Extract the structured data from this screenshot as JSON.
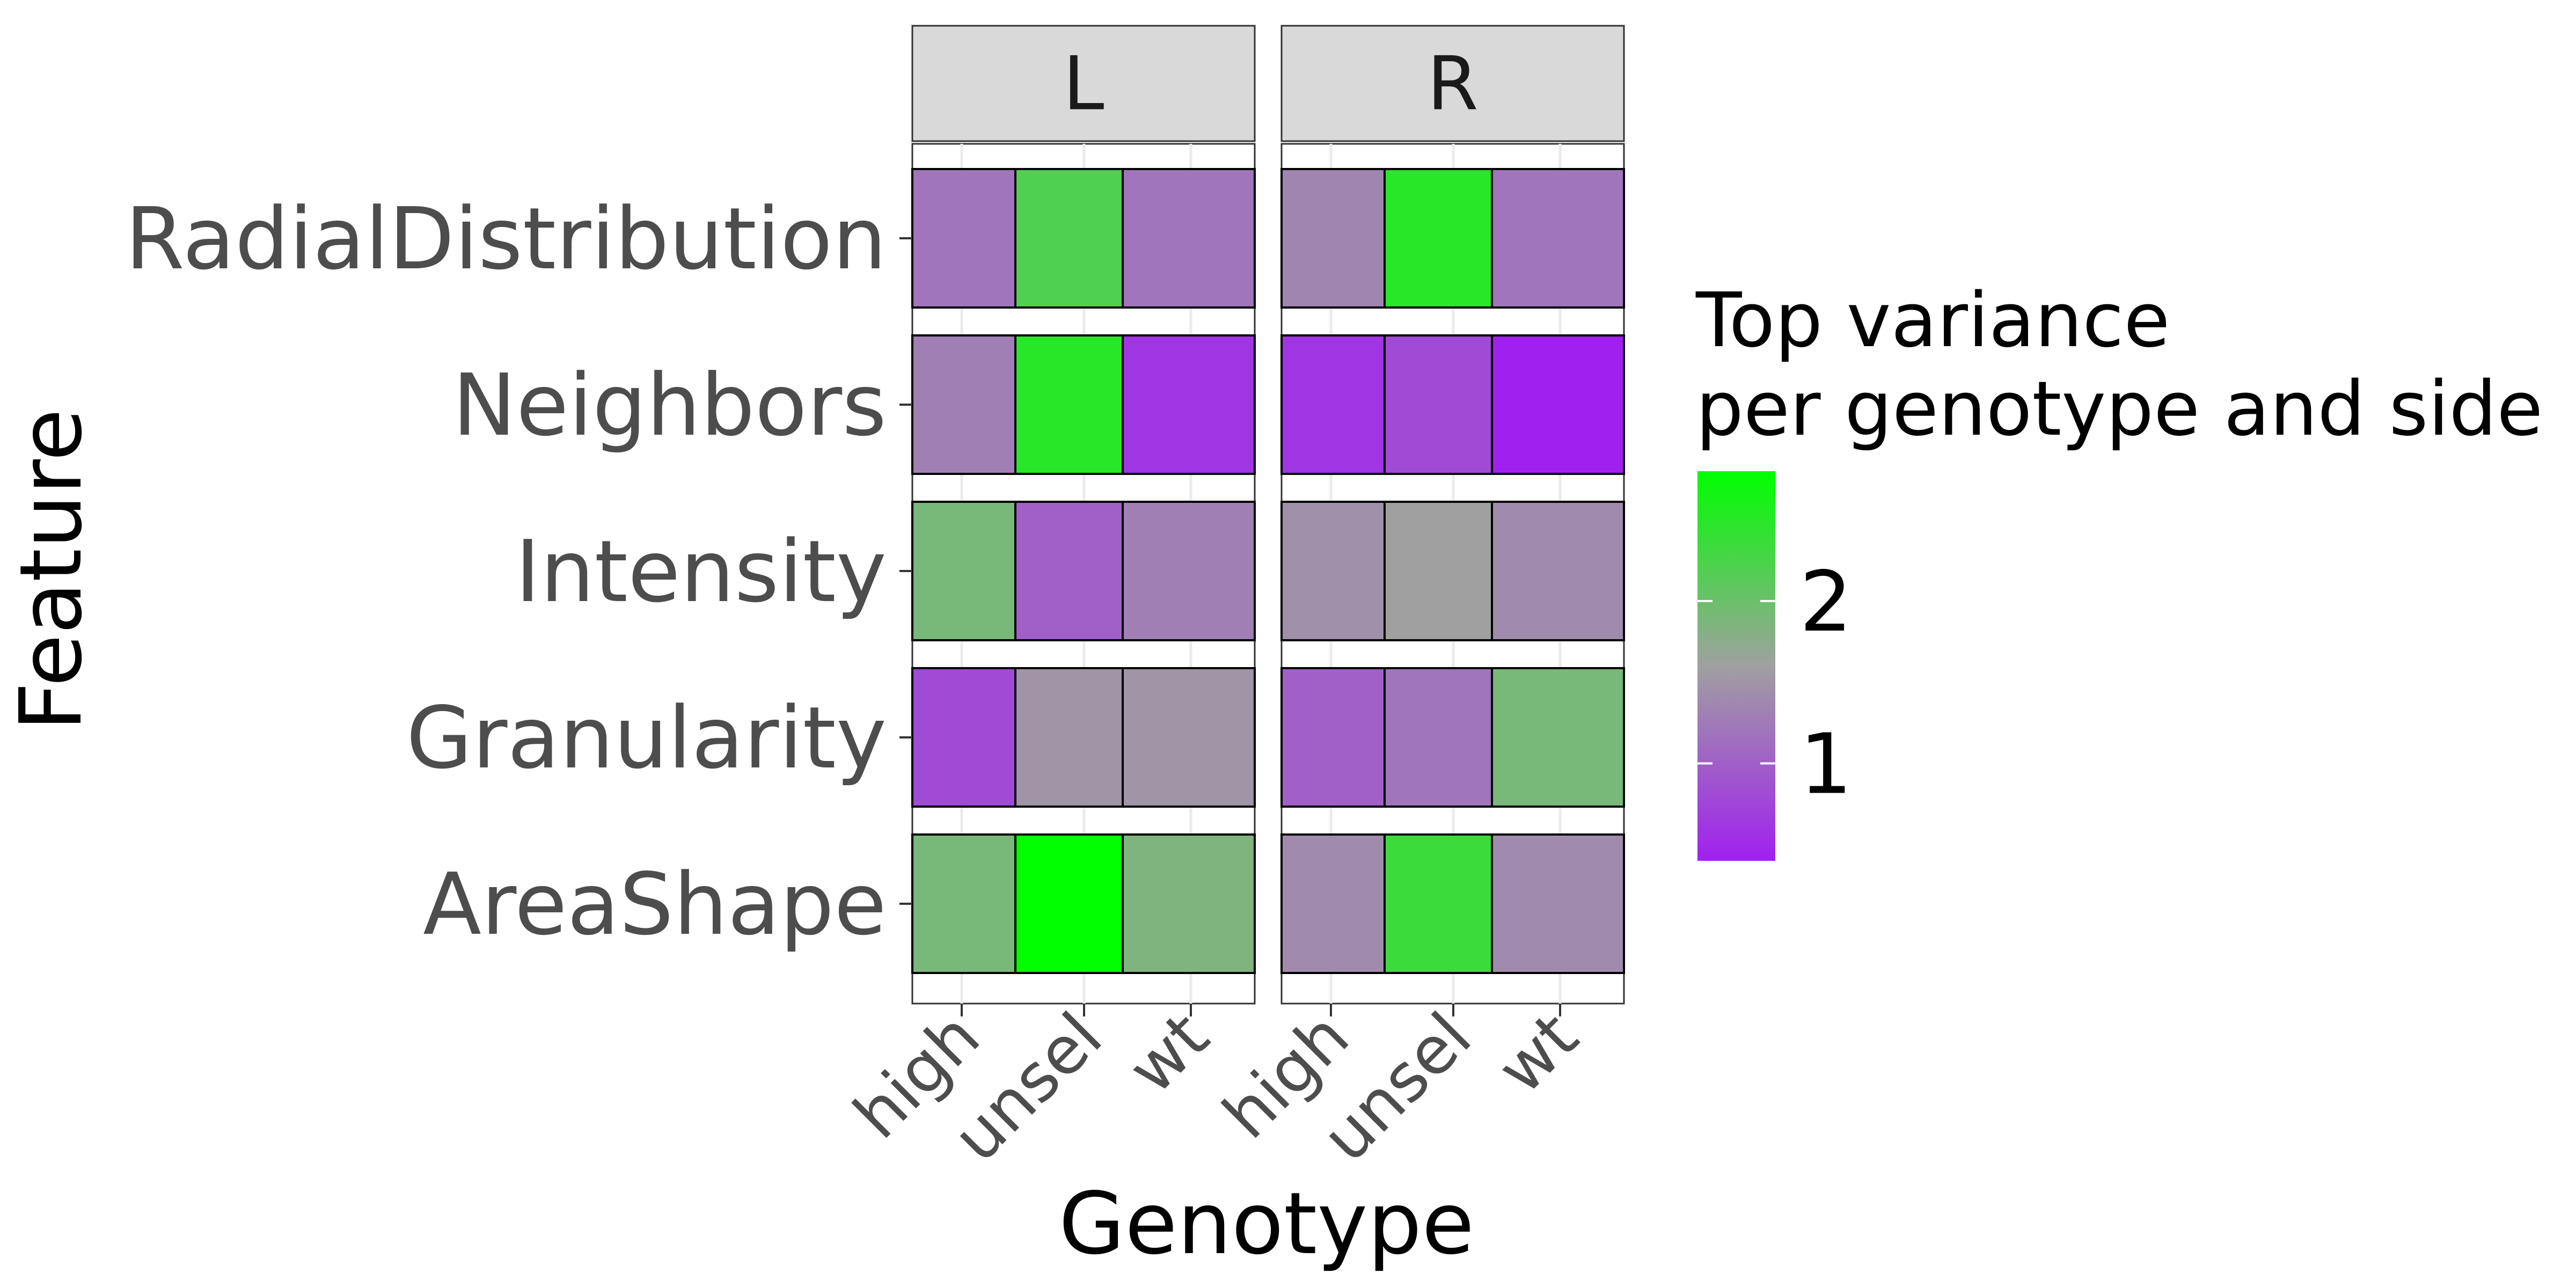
{
  "chart_data": {
    "type": "heatmap",
    "xlabel": "Genotype",
    "ylabel": "Feature",
    "facets": [
      "L",
      "R"
    ],
    "x_categories": [
      "high",
      "unsel",
      "wt"
    ],
    "y_categories": [
      "AreaShape",
      "Granularity",
      "Intensity",
      "Neighbors",
      "RadialDistribution"
    ],
    "values": {
      "L": {
        "RadialDistribution": [
          1.2,
          2.2,
          1.2
        ],
        "Neighbors": [
          1.3,
          2.5,
          0.6
        ],
        "Intensity": [
          1.9,
          1.0,
          1.3
        ],
        "Granularity": [
          0.8,
          1.5,
          1.5
        ],
        "AreaShape": [
          1.9,
          3.0,
          1.85
        ]
      },
      "R": {
        "RadialDistribution": [
          1.35,
          2.5,
          1.2
        ],
        "Neighbors": [
          0.6,
          0.8,
          0.3
        ],
        "Intensity": [
          1.45,
          1.6,
          1.4
        ],
        "Granularity": [
          1.0,
          1.2,
          1.9
        ],
        "AreaShape": [
          1.4,
          2.35,
          1.4
        ]
      }
    },
    "legend": {
      "title_lines": [
        "Top variance",
        "per genotype and side"
      ],
      "ticks": [
        1,
        2
      ],
      "range": [
        0.4,
        2.8
      ],
      "colors": {
        "low": "#a020f0",
        "mid": "#a0a0a0",
        "high": "#00ff00"
      },
      "midpoint": 1.6
    }
  }
}
